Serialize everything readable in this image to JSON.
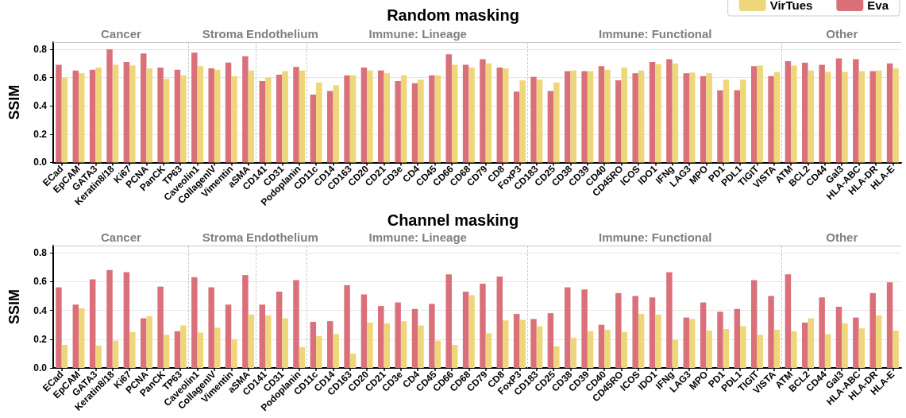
{
  "chart_data": [
    {
      "type": "bar",
      "title": "Random masking",
      "ylabel": "SSIM",
      "categories": [
        "ECad",
        "EpCAM",
        "GATA3",
        "Keratin8/18",
        "Ki67",
        "PCNA",
        "PanCK",
        "TP63",
        "Caveolin1",
        "CollagenIV",
        "Vimentin",
        "aSMA",
        "CD141",
        "CD31",
        "Podoplanin",
        "CD11c",
        "CD14",
        "CD163",
        "CD20",
        "CD21",
        "CD3e",
        "CD4",
        "CD45",
        "CD66",
        "CD68",
        "CD79",
        "CD8",
        "FoxP3",
        "CD183",
        "CD25",
        "CD38",
        "CD39",
        "CD40",
        "CD45RO",
        "ICOS",
        "IDO1",
        "IFNg",
        "LAG3",
        "MPO",
        "PD1",
        "PDL1",
        "TIGIT",
        "VISTA",
        "ATM",
        "BCL2",
        "CD44",
        "Gal3",
        "HLA-ABC",
        "HLA-DR",
        "HLA-E"
      ],
      "series": [
        {
          "name": "Eva",
          "color": "#d9707a",
          "values": [
            0.69,
            0.65,
            0.655,
            0.8,
            0.71,
            0.77,
            0.67,
            0.655,
            0.775,
            0.665,
            0.705,
            0.75,
            0.575,
            0.62,
            0.675,
            0.48,
            0.505,
            0.615,
            0.67,
            0.65,
            0.575,
            0.56,
            0.615,
            0.765,
            0.69,
            0.73,
            0.67,
            0.5,
            0.605,
            0.505,
            0.645,
            0.645,
            0.68,
            0.58,
            0.63,
            0.71,
            0.73,
            0.63,
            0.61,
            0.51,
            0.51,
            0.68,
            0.61,
            0.715,
            0.705,
            0.69,
            0.735,
            0.73,
            0.645,
            0.7
          ]
        },
        {
          "name": "VirTues",
          "color": "#eed67a",
          "values": [
            0.6,
            0.63,
            0.67,
            0.69,
            0.685,
            0.665,
            0.59,
            0.615,
            0.68,
            0.655,
            0.61,
            0.65,
            0.6,
            0.645,
            0.65,
            0.565,
            0.545,
            0.615,
            0.65,
            0.63,
            0.615,
            0.585,
            0.615,
            0.69,
            0.67,
            0.7,
            0.665,
            0.58,
            0.585,
            0.565,
            0.65,
            0.645,
            0.655,
            0.67,
            0.65,
            0.695,
            0.7,
            0.635,
            0.63,
            0.585,
            0.585,
            0.685,
            0.64,
            0.685,
            0.65,
            0.64,
            0.64,
            0.645,
            0.65,
            0.665
          ]
        }
      ],
      "ylim": [
        0,
        0.85
      ],
      "yticks": [
        {
          "value": 0,
          "label": "0.0"
        },
        0.2,
        0.4,
        0.6,
        0.8
      ],
      "grid": "y",
      "legend": "top right",
      "annotations": [
        "Cancer",
        "Stroma",
        "Endothelium",
        "Immune: Lineage",
        "Immune: Functional",
        "Other"
      ]
    },
    {
      "type": "bar",
      "title": "Channel masking",
      "ylabel": "SSIM",
      "categories": [
        "ECad",
        "EpCAM",
        "GATA3",
        "Keratin8/18",
        "Ki67",
        "PCNA",
        "PanCK",
        "TP63",
        "Caveolin1",
        "CollagenIV",
        "Vimentin",
        "aSMA",
        "CD141",
        "CD31",
        "Podoplanin",
        "CD11c",
        "CD14",
        "CD163",
        "CD20",
        "CD21",
        "CD3e",
        "CD4",
        "CD45",
        "CD66",
        "CD68",
        "CD79",
        "CD8",
        "FoxP3",
        "CD183",
        "CD25",
        "CD38",
        "CD39",
        "CD40",
        "CD45RO",
        "ICOS",
        "IDO1",
        "IFNg",
        "LAG3",
        "MPO",
        "PD1",
        "PDL1",
        "TIGIT",
        "VISTA",
        "ATM",
        "BCL2",
        "CD44",
        "Gal3",
        "HLA-ABC",
        "HLA-DR",
        "HLA-E"
      ],
      "series": [
        {
          "color": "#d9707a",
          "values": [
            0.56,
            0.44,
            0.615,
            0.68,
            0.665,
            0.345,
            0.565,
            0.255,
            0.63,
            0.56,
            0.44,
            0.645,
            0.44,
            0.53,
            0.61,
            0.32,
            0.325,
            0.575,
            0.51,
            0.43,
            0.455,
            0.41,
            0.445,
            0.65,
            0.53,
            0.585,
            0.635,
            0.375,
            0.34,
            0.38,
            0.56,
            0.545,
            0.3,
            0.52,
            0.5,
            0.49,
            0.665,
            0.35,
            0.455,
            0.39,
            0.41,
            0.61,
            0.5,
            0.65,
            0.315,
            0.49,
            0.425,
            0.35,
            0.52,
            0.595
          ]
        },
        {
          "color": "#eed67a",
          "values": [
            0.16,
            0.415,
            0.155,
            0.19,
            0.25,
            0.36,
            0.23,
            0.295,
            0.245,
            0.28,
            0.2,
            0.37,
            0.365,
            0.345,
            0.145,
            0.22,
            0.235,
            0.1,
            0.315,
            0.31,
            0.325,
            0.295,
            0.19,
            0.16,
            0.505,
            0.24,
            0.33,
            0.335,
            0.29,
            0.15,
            0.21,
            0.255,
            0.265,
            0.25,
            0.375,
            0.37,
            0.195,
            0.34,
            0.26,
            0.27,
            0.29,
            0.23,
            0.265,
            0.255,
            0.345,
            0.235,
            0.31,
            0.275,
            0.365,
            0.26
          ]
        }
      ],
      "ylim": [
        0,
        0.85
      ],
      "yticks": [
        {
          "value": 0,
          "label": "0.0"
        },
        0.2,
        0.4,
        0.6,
        0.8
      ],
      "grid": "y",
      "annotations": [
        "Cancer",
        "Stroma",
        "Endothelium",
        "Immune: Lineage",
        "Immune: Functional",
        "Other"
      ]
    }
  ]
}
